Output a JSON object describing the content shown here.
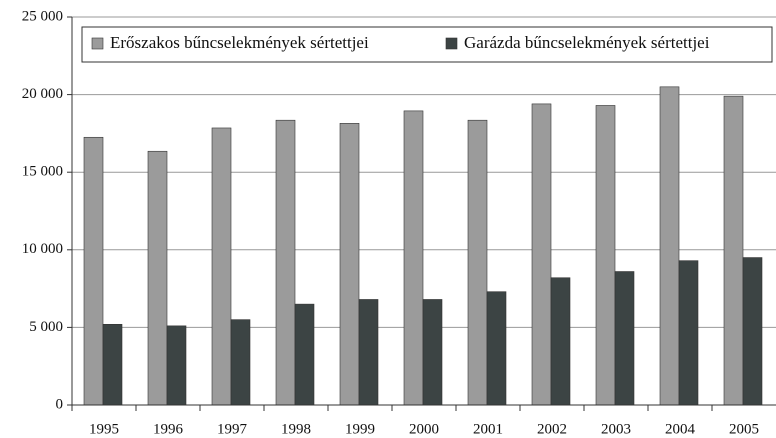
{
  "chart_data": {
    "type": "bar",
    "categories": [
      "1995",
      "1996",
      "1997",
      "1998",
      "1999",
      "2000",
      "2001",
      "2002",
      "2003",
      "2004",
      "2005"
    ],
    "series": [
      {
        "name": "Erőszakos bűncselekmények sértettjei",
        "color": "#9b9b9b",
        "values": [
          17250,
          16350,
          17850,
          18350,
          18150,
          18950,
          18350,
          19400,
          19300,
          20500,
          19900
        ]
      },
      {
        "name": "Garázda bűncselekmények sértettjei",
        "color": "#3c4444",
        "values": [
          5200,
          5100,
          5500,
          6500,
          6800,
          6800,
          7300,
          8200,
          8600,
          9300,
          9500
        ]
      }
    ],
    "ylim": [
      0,
      25000
    ],
    "yticks": [
      0,
      {
        "value": 5000,
        "label": "5 000"
      },
      {
        "value": 10000,
        "label": "10 000"
      },
      {
        "value": 15000,
        "label": "15 000"
      },
      {
        "value": 20000,
        "label": "20 000"
      },
      {
        "value": 25000,
        "label": "25 000"
      }
    ],
    "grid": true,
    "legend": "top"
  }
}
